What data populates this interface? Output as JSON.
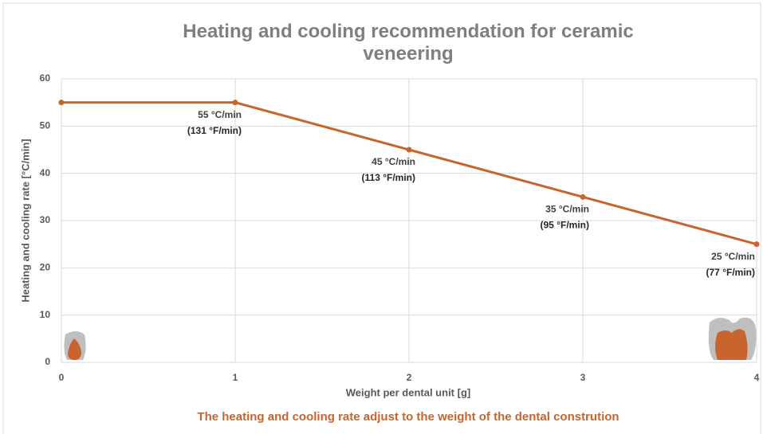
{
  "chart_data": {
    "type": "line",
    "title": "Heating and cooling recommendation for ceramic veneering",
    "x_label": "Weight per dental unit [g]",
    "y_label": "Heating and cooling rate [°C/min]",
    "subtitle": "The heating and cooling rate adjust to the weight of the dental constrution",
    "x": [
      0,
      1,
      2,
      3,
      4
    ],
    "values": [
      55,
      55,
      45,
      35,
      25
    ],
    "value_labels": [
      null,
      "55 °C/min",
      "45 °C/min",
      "35 °C/min",
      "25 °C/min"
    ],
    "secondary_labels": [
      null,
      "(131 °F/min)",
      "(113 °F/min)",
      "(95 °F/min)",
      "(77 °F/min)"
    ],
    "color": "#c8652e",
    "xlim": [
      0,
      4
    ],
    "xticks": [
      0,
      1,
      2,
      3,
      4
    ],
    "ylim": [
      0,
      60
    ],
    "yticks": [
      0,
      10,
      20,
      30,
      40,
      50,
      60
    ],
    "grid": true
  }
}
